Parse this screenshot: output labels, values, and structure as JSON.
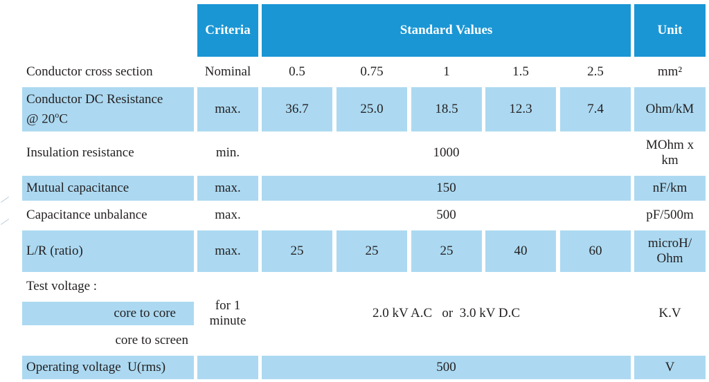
{
  "header": {
    "criteria": "Criteria",
    "standard_values": "Standard Values",
    "unit": "Unit"
  },
  "rows": {
    "cross_section": {
      "label": "Conductor cross section",
      "criteria": "Nominal",
      "values": [
        "0.5",
        "0.75",
        "1",
        "1.5",
        "2.5"
      ],
      "unit": "mm²"
    },
    "dc_resistance": {
      "label_line1": "Conductor DC Resistance",
      "label_line2_prefix": "@ 20",
      "label_line2_sup": "o",
      "label_line2_suffix": "C",
      "criteria": "max.",
      "values": [
        "36.7",
        "25.0",
        "18.5",
        "12.3",
        "7.4"
      ],
      "unit": "Ohm/kM"
    },
    "insulation": {
      "label": "Insulation resistance",
      "criteria": "min.",
      "value": "1000",
      "unit_line1": "MOhm x",
      "unit_line2": "km"
    },
    "mutual_capacitance": {
      "label": "Mutual capacitance",
      "criteria": "max.",
      "value": "150",
      "unit": "nF/km"
    },
    "capacitance_unbalance": {
      "label": "Capacitance unbalance",
      "criteria": "max.",
      "value": "500",
      "unit": "pF/500m"
    },
    "lr_ratio": {
      "label": "L/R (ratio)",
      "criteria": "max.",
      "values": [
        "25",
        "25",
        "25",
        "40",
        "60"
      ],
      "unit_line1": "microH/",
      "unit_line2": "Ohm"
    },
    "test_voltage": {
      "label": "Test voltage :",
      "sub_core_to_core": "core to core",
      "sub_core_to_screen": "core to screen",
      "criteria_line1": "for 1",
      "criteria_line2": "minute",
      "value": "2.0 kV A.C   or  3.0 kV D.C",
      "unit": "K.V"
    },
    "operating_voltage": {
      "label": "Operating voltage  U(rms)",
      "value": "500",
      "unit": "V"
    }
  },
  "colors": {
    "header_blue": "#1a96d4",
    "row_shade": "#acd9f1",
    "text": "#231f20"
  }
}
